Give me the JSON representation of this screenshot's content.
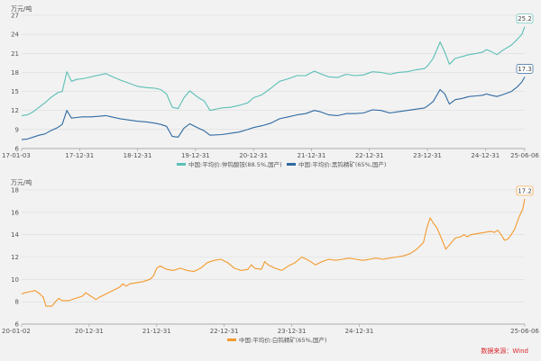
{
  "chart_data": [
    {
      "type": "line",
      "ylabel": "万元/吨",
      "ylim": [
        6,
        27
      ],
      "yticks": [
        6,
        9,
        12,
        15,
        18,
        21,
        24,
        27
      ],
      "x_ticks": [
        "17-01-03",
        "17-12-31",
        "18-12-31",
        "19-12-31",
        "20-12-31",
        "21-12-31",
        "22-12-31",
        "23-12-31",
        "24-12-31",
        "25-06-06"
      ],
      "grid": "horizontal",
      "legend_position": "bottom",
      "series": [
        {
          "name": "中国:平均价:仲钨酸铵(88.5%,国产)",
          "color": "#5bbfb5",
          "end_label": "25.2",
          "points": [
            [
              0,
              11.2
            ],
            [
              0.1,
              11.3
            ],
            [
              0.2,
              11.8
            ],
            [
              0.3,
              12.5
            ],
            [
              0.4,
              13.2
            ],
            [
              0.5,
              14.0
            ],
            [
              0.62,
              14.8
            ],
            [
              0.7,
              15.0
            ],
            [
              0.78,
              18.1
            ],
            [
              0.86,
              16.6
            ],
            [
              0.95,
              16.9
            ],
            [
              1.05,
              17.0
            ],
            [
              1.2,
              17.3
            ],
            [
              1.35,
              17.6
            ],
            [
              1.45,
              17.8
            ],
            [
              1.55,
              17.4
            ],
            [
              1.7,
              16.8
            ],
            [
              1.85,
              16.3
            ],
            [
              2.0,
              15.8
            ],
            [
              2.15,
              15.6
            ],
            [
              2.3,
              15.5
            ],
            [
              2.4,
              15.3
            ],
            [
              2.5,
              14.6
            ],
            [
              2.6,
              12.5
            ],
            [
              2.7,
              12.3
            ],
            [
              2.8,
              14.0
            ],
            [
              2.9,
              15.1
            ],
            [
              3.05,
              14.0
            ],
            [
              3.15,
              13.5
            ],
            [
              3.25,
              12.0
            ],
            [
              3.45,
              12.4
            ],
            [
              3.6,
              12.5
            ],
            [
              3.75,
              12.8
            ],
            [
              3.9,
              13.2
            ],
            [
              4.0,
              14.0
            ],
            [
              4.15,
              14.5
            ],
            [
              4.3,
              15.5
            ],
            [
              4.45,
              16.6
            ],
            [
              4.6,
              17.0
            ],
            [
              4.75,
              17.5
            ],
            [
              4.9,
              17.5
            ],
            [
              5.05,
              18.2
            ],
            [
              5.15,
              17.8
            ],
            [
              5.3,
              17.3
            ],
            [
              5.45,
              17.2
            ],
            [
              5.6,
              17.7
            ],
            [
              5.75,
              17.5
            ],
            [
              5.9,
              17.6
            ],
            [
              6.05,
              18.1
            ],
            [
              6.2,
              18.0
            ],
            [
              6.35,
              17.7
            ],
            [
              6.5,
              18.0
            ],
            [
              6.65,
              18.1
            ],
            [
              6.8,
              18.4
            ],
            [
              6.95,
              18.6
            ],
            [
              7.0,
              19.0
            ],
            [
              7.1,
              20.2
            ],
            [
              7.22,
              22.8
            ],
            [
              7.3,
              21.2
            ],
            [
              7.38,
              19.3
            ],
            [
              7.48,
              20.2
            ],
            [
              7.6,
              20.5
            ],
            [
              7.72,
              20.8
            ],
            [
              7.85,
              21.0
            ],
            [
              7.95,
              21.2
            ],
            [
              8.02,
              21.6
            ],
            [
              8.1,
              21.3
            ],
            [
              8.2,
              20.8
            ],
            [
              8.3,
              21.5
            ],
            [
              8.45,
              22.3
            ],
            [
              8.55,
              23.2
            ],
            [
              8.63,
              24.0
            ],
            [
              8.68,
              25.2
            ]
          ]
        },
        {
          "name": "中国:平均价:黑钨精矿(65%,国产)",
          "color": "#2f6aa1",
          "end_label": "17.3",
          "points": [
            [
              0,
              7.4
            ],
            [
              0.1,
              7.5
            ],
            [
              0.2,
              7.8
            ],
            [
              0.3,
              8.1
            ],
            [
              0.4,
              8.3
            ],
            [
              0.5,
              8.8
            ],
            [
              0.62,
              9.3
            ],
            [
              0.7,
              9.8
            ],
            [
              0.78,
              12.0
            ],
            [
              0.86,
              10.8
            ],
            [
              0.95,
              10.9
            ],
            [
              1.05,
              11.0
            ],
            [
              1.2,
              11.0
            ],
            [
              1.35,
              11.1
            ],
            [
              1.45,
              11.2
            ],
            [
              1.55,
              11.0
            ],
            [
              1.7,
              10.7
            ],
            [
              1.85,
              10.5
            ],
            [
              2.0,
              10.3
            ],
            [
              2.15,
              10.2
            ],
            [
              2.3,
              10.0
            ],
            [
              2.4,
              9.8
            ],
            [
              2.5,
              9.5
            ],
            [
              2.6,
              7.9
            ],
            [
              2.7,
              7.8
            ],
            [
              2.8,
              9.2
            ],
            [
              2.9,
              9.9
            ],
            [
              3.05,
              9.2
            ],
            [
              3.15,
              8.8
            ],
            [
              3.25,
              8.1
            ],
            [
              3.45,
              8.2
            ],
            [
              3.6,
              8.4
            ],
            [
              3.75,
              8.6
            ],
            [
              3.9,
              9.0
            ],
            [
              4.0,
              9.3
            ],
            [
              4.15,
              9.6
            ],
            [
              4.3,
              10.0
            ],
            [
              4.45,
              10.7
            ],
            [
              4.6,
              11.0
            ],
            [
              4.75,
              11.3
            ],
            [
              4.9,
              11.5
            ],
            [
              5.05,
              12.0
            ],
            [
              5.15,
              11.8
            ],
            [
              5.3,
              11.3
            ],
            [
              5.45,
              11.2
            ],
            [
              5.6,
              11.5
            ],
            [
              5.75,
              11.5
            ],
            [
              5.9,
              11.6
            ],
            [
              6.05,
              12.1
            ],
            [
              6.2,
              12.0
            ],
            [
              6.35,
              11.6
            ],
            [
              6.5,
              11.8
            ],
            [
              6.65,
              12.0
            ],
            [
              6.8,
              12.2
            ],
            [
              6.95,
              12.4
            ],
            [
              7.0,
              12.7
            ],
            [
              7.1,
              13.4
            ],
            [
              7.22,
              15.3
            ],
            [
              7.3,
              14.6
            ],
            [
              7.38,
              13.0
            ],
            [
              7.48,
              13.7
            ],
            [
              7.6,
              13.9
            ],
            [
              7.72,
              14.2
            ],
            [
              7.85,
              14.3
            ],
            [
              7.95,
              14.4
            ],
            [
              8.02,
              14.6
            ],
            [
              8.1,
              14.4
            ],
            [
              8.2,
              14.2
            ],
            [
              8.3,
              14.5
            ],
            [
              8.45,
              15.0
            ],
            [
              8.55,
              15.7
            ],
            [
              8.63,
              16.5
            ],
            [
              8.68,
              17.3
            ]
          ]
        }
      ]
    },
    {
      "type": "line",
      "ylabel": "万元/吨",
      "ylim": [
        6,
        18
      ],
      "yticks": [
        6,
        8,
        10,
        12,
        14,
        16,
        18
      ],
      "x_ticks": [
        "20-01-02",
        "20-12-31",
        "21-12-31",
        "22-12-31",
        "23-12-31",
        "24-12-31",
        "25-06-06"
      ],
      "grid": "horizontal",
      "legend_position": "bottom",
      "series": [
        {
          "name": "中国:平均价:白钨精矿(65%,国产)",
          "color": "#f39a2c",
          "end_label": "17.2",
          "points": [
            [
              0,
              8.7
            ],
            [
              0.05,
              8.8
            ],
            [
              0.12,
              8.9
            ],
            [
              0.2,
              9.0
            ],
            [
              0.27,
              8.7
            ],
            [
              0.32,
              8.4
            ],
            [
              0.36,
              7.6
            ],
            [
              0.45,
              7.6
            ],
            [
              0.5,
              8.0
            ],
            [
              0.55,
              8.3
            ],
            [
              0.6,
              8.1
            ],
            [
              0.7,
              8.1
            ],
            [
              0.8,
              8.3
            ],
            [
              0.9,
              8.5
            ],
            [
              0.95,
              8.8
            ],
            [
              1.0,
              8.6
            ],
            [
              1.05,
              8.4
            ],
            [
              1.1,
              8.2
            ],
            [
              1.15,
              8.4
            ],
            [
              1.25,
              8.7
            ],
            [
              1.35,
              9.0
            ],
            [
              1.45,
              9.3
            ],
            [
              1.5,
              9.6
            ],
            [
              1.55,
              9.4
            ],
            [
              1.6,
              9.6
            ],
            [
              1.7,
              9.7
            ],
            [
              1.8,
              9.8
            ],
            [
              1.9,
              10.0
            ],
            [
              1.95,
              10.3
            ],
            [
              2.0,
              11.0
            ],
            [
              2.05,
              11.2
            ],
            [
              2.15,
              10.9
            ],
            [
              2.25,
              10.8
            ],
            [
              2.35,
              11.0
            ],
            [
              2.45,
              10.8
            ],
            [
              2.55,
              10.7
            ],
            [
              2.65,
              11.0
            ],
            [
              2.75,
              11.5
            ],
            [
              2.85,
              11.7
            ],
            [
              2.95,
              11.8
            ],
            [
              3.05,
              11.5
            ],
            [
              3.15,
              11.0
            ],
            [
              3.25,
              10.8
            ],
            [
              3.35,
              10.9
            ],
            [
              3.4,
              11.3
            ],
            [
              3.45,
              11.0
            ],
            [
              3.55,
              10.9
            ],
            [
              3.6,
              11.6
            ],
            [
              3.65,
              11.3
            ],
            [
              3.75,
              11.0
            ],
            [
              3.85,
              10.8
            ],
            [
              3.95,
              11.2
            ],
            [
              4.05,
              11.5
            ],
            [
              4.15,
              12.0
            ],
            [
              4.25,
              11.7
            ],
            [
              4.35,
              11.3
            ],
            [
              4.45,
              11.6
            ],
            [
              4.55,
              11.8
            ],
            [
              4.65,
              11.7
            ],
            [
              4.75,
              11.8
            ],
            [
              4.85,
              11.9
            ],
            [
              4.95,
              11.8
            ],
            [
              5.05,
              11.7
            ],
            [
              5.15,
              11.8
            ],
            [
              5.25,
              11.9
            ],
            [
              5.35,
              11.8
            ],
            [
              5.45,
              11.9
            ],
            [
              5.55,
              12.0
            ],
            [
              5.65,
              12.1
            ],
            [
              5.75,
              12.3
            ],
            [
              5.85,
              12.7
            ],
            [
              5.95,
              13.3
            ],
            [
              6.0,
              14.6
            ],
            [
              6.05,
              15.5
            ],
            [
              6.1,
              15.0
            ],
            [
              6.15,
              14.6
            ],
            [
              6.22,
              13.6
            ],
            [
              6.28,
              12.7
            ],
            [
              6.35,
              13.2
            ],
            [
              6.42,
              13.7
            ],
            [
              6.5,
              13.8
            ],
            [
              6.55,
              14.0
            ],
            [
              6.6,
              13.8
            ],
            [
              6.65,
              14.0
            ],
            [
              6.75,
              14.1
            ],
            [
              6.85,
              14.2
            ],
            [
              6.95,
              14.3
            ],
            [
              7.0,
              14.2
            ],
            [
              7.05,
              14.4
            ],
            [
              7.1,
              14.0
            ],
            [
              7.15,
              13.5
            ],
            [
              7.2,
              13.6
            ],
            [
              7.25,
              14.0
            ],
            [
              7.3,
              14.5
            ],
            [
              7.36,
              15.5
            ],
            [
              7.42,
              16.3
            ],
            [
              7.45,
              17.2
            ]
          ]
        }
      ]
    }
  ],
  "source_note": "数据来源：Wind"
}
